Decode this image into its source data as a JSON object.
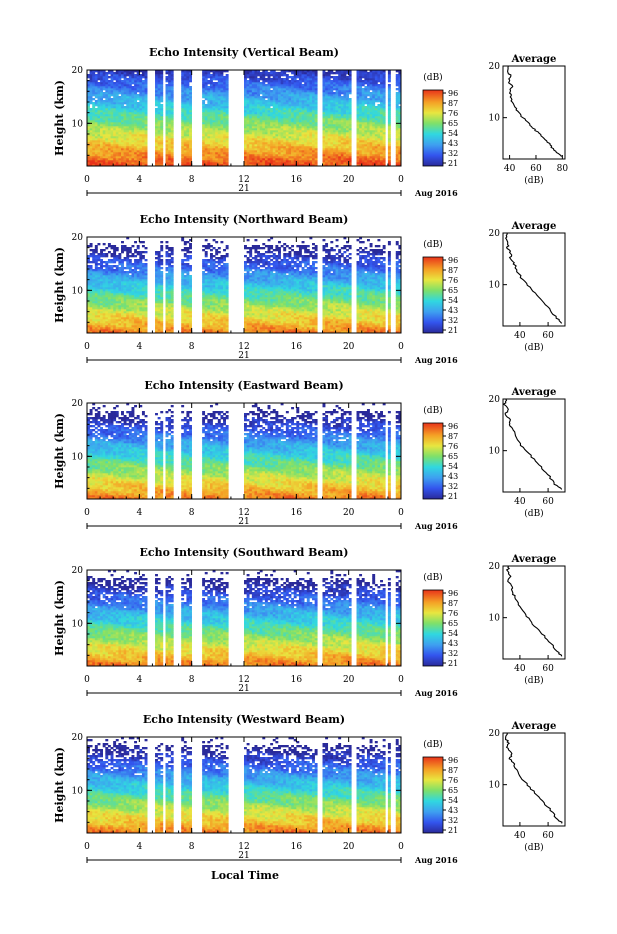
{
  "footer": {
    "xlabel": "Local Time"
  },
  "chart_data": [
    {
      "type": "heatmap",
      "title": "Echo Intensity (Vertical Beam)",
      "ylabel": "Height (km)",
      "yticks": [
        "10",
        "20"
      ],
      "ylim": [
        2,
        20
      ],
      "xticks": [
        "0",
        "4",
        "8",
        "12",
        "16",
        "20",
        "0"
      ],
      "xlim": [
        0,
        24
      ],
      "day_label": "21",
      "date_label": "Aug 2016",
      "colorbar": {
        "unit": "(dB)",
        "ticks": [
          "96",
          "87",
          "76",
          "65",
          "54",
          "43",
          "32",
          "21"
        ]
      },
      "average": {
        "title": "Average",
        "xlabel": "(dB)",
        "xticks": [
          "40",
          "60",
          "80"
        ],
        "xlim": [
          35,
          82
        ],
        "yticks": [
          "10",
          "20"
        ],
        "ylim": [
          2,
          20
        ],
        "profile": [
          [
            80,
            2.5
          ],
          [
            77,
            3
          ],
          [
            73,
            4
          ],
          [
            70,
            5
          ],
          [
            66,
            6
          ],
          [
            62,
            7
          ],
          [
            58,
            8
          ],
          [
            54,
            9
          ],
          [
            50,
            10
          ],
          [
            47,
            11
          ],
          [
            44,
            12
          ],
          [
            42,
            13
          ],
          [
            41,
            14
          ],
          [
            40,
            15
          ],
          [
            42,
            16
          ],
          [
            39,
            17
          ],
          [
            41,
            18
          ],
          [
            38,
            19
          ],
          [
            39,
            20
          ]
        ]
      }
    },
    {
      "type": "heatmap",
      "title": "Echo Intensity (Northward Beam)",
      "ylabel": "Height (km)",
      "yticks": [
        "10",
        "20"
      ],
      "ylim": [
        2,
        20
      ],
      "xticks": [
        "0",
        "4",
        "8",
        "12",
        "16",
        "20",
        "0"
      ],
      "xlim": [
        0,
        24
      ],
      "day_label": "21",
      "date_label": "Aug 2016",
      "colorbar": {
        "unit": "(dB)",
        "ticks": [
          "96",
          "87",
          "76",
          "65",
          "54",
          "43",
          "32",
          "21"
        ]
      },
      "average": {
        "title": "Average",
        "xlabel": "(dB)",
        "xticks": [
          "40",
          "60"
        ],
        "xlim": [
          28,
          72
        ],
        "yticks": [
          "10",
          "20"
        ],
        "ylim": [
          2,
          20
        ],
        "profile": [
          [
            70,
            2.5
          ],
          [
            66,
            3.5
          ],
          [
            62,
            5
          ],
          [
            57,
            6.5
          ],
          [
            52,
            8
          ],
          [
            47,
            9.5
          ],
          [
            42,
            11
          ],
          [
            38,
            12.5
          ],
          [
            36,
            14
          ],
          [
            33,
            15
          ],
          [
            34,
            16
          ],
          [
            31,
            17
          ],
          [
            32,
            18
          ],
          [
            30,
            19
          ],
          [
            31,
            20
          ]
        ]
      }
    },
    {
      "type": "heatmap",
      "title": "Echo Intensity (Eastward Beam)",
      "ylabel": "Height (km)",
      "yticks": [
        "10",
        "20"
      ],
      "ylim": [
        2,
        20
      ],
      "xticks": [
        "0",
        "4",
        "8",
        "12",
        "16",
        "20",
        "0"
      ],
      "xlim": [
        0,
        24
      ],
      "day_label": "21",
      "date_label": "Aug 2016",
      "colorbar": {
        "unit": "(dB)",
        "ticks": [
          "96",
          "87",
          "76",
          "65",
          "54",
          "43",
          "32",
          "21"
        ]
      },
      "average": {
        "title": "Average",
        "xlabel": "(dB)",
        "xticks": [
          "40",
          "60"
        ],
        "xlim": [
          28,
          72
        ],
        "yticks": [
          "10",
          "20"
        ],
        "ylim": [
          2,
          20
        ],
        "profile": [
          [
            70,
            2.5
          ],
          [
            65,
            3.5
          ],
          [
            61,
            5
          ],
          [
            56,
            6.5
          ],
          [
            51,
            8
          ],
          [
            46,
            9.5
          ],
          [
            41,
            11
          ],
          [
            37,
            12.5
          ],
          [
            35,
            14
          ],
          [
            32,
            15
          ],
          [
            33,
            16
          ],
          [
            30,
            17
          ],
          [
            31,
            18
          ],
          [
            29,
            19
          ],
          [
            30,
            20
          ]
        ]
      }
    },
    {
      "type": "heatmap",
      "title": "Echo Intensity (Southward Beam)",
      "ylabel": "Height (km)",
      "yticks": [
        "10",
        "20"
      ],
      "ylim": [
        2,
        20
      ],
      "xticks": [
        "0",
        "4",
        "8",
        "12",
        "16",
        "20",
        "0"
      ],
      "xlim": [
        0,
        24
      ],
      "day_label": "21",
      "date_label": "Aug 2016",
      "colorbar": {
        "unit": "(dB)",
        "ticks": [
          "96",
          "87",
          "76",
          "65",
          "54",
          "43",
          "32",
          "21"
        ]
      },
      "average": {
        "title": "Average",
        "xlabel": "(dB)",
        "xticks": [
          "40",
          "60"
        ],
        "xlim": [
          28,
          72
        ],
        "yticks": [
          "10",
          "20"
        ],
        "ylim": [
          2,
          20
        ],
        "profile": [
          [
            70,
            2.5
          ],
          [
            66,
            3.5
          ],
          [
            62,
            5
          ],
          [
            57,
            6.5
          ],
          [
            52,
            8
          ],
          [
            47,
            9.5
          ],
          [
            43,
            11
          ],
          [
            39,
            12.5
          ],
          [
            37,
            14
          ],
          [
            34,
            15
          ],
          [
            35,
            16
          ],
          [
            32,
            17
          ],
          [
            33,
            18
          ],
          [
            31,
            19
          ],
          [
            32,
            20
          ]
        ]
      }
    },
    {
      "type": "heatmap",
      "title": "Echo Intensity (Westward Beam)",
      "ylabel": "Height (km)",
      "yticks": [
        "10",
        "20"
      ],
      "ylim": [
        2,
        20
      ],
      "xticks": [
        "0",
        "4",
        "8",
        "12",
        "16",
        "20",
        "0"
      ],
      "xlim": [
        0,
        24
      ],
      "day_label": "21",
      "date_label": "Aug 2016",
      "colorbar": {
        "unit": "(dB)",
        "ticks": [
          "96",
          "87",
          "76",
          "65",
          "54",
          "43",
          "32",
          "21"
        ]
      },
      "average": {
        "title": "Average",
        "xlabel": "(dB)",
        "xticks": [
          "40",
          "60"
        ],
        "xlim": [
          28,
          72
        ],
        "yticks": [
          "10",
          "20"
        ],
        "ylim": [
          2,
          20
        ],
        "profile": [
          [
            70,
            2.5
          ],
          [
            66,
            3.5
          ],
          [
            62,
            5
          ],
          [
            57,
            6.5
          ],
          [
            52,
            8
          ],
          [
            47,
            9.5
          ],
          [
            42,
            11
          ],
          [
            38,
            12.5
          ],
          [
            36,
            14
          ],
          [
            33,
            15
          ],
          [
            34,
            16
          ],
          [
            31,
            17
          ],
          [
            32,
            18
          ],
          [
            30,
            19
          ],
          [
            31,
            20
          ]
        ]
      }
    }
  ],
  "data_gaps_hours": [
    [
      4.7,
      5.2
    ],
    [
      5.7,
      6.0
    ],
    [
      6.7,
      7.2
    ],
    [
      8.0,
      8.8
    ],
    [
      10.8,
      11.9
    ],
    [
      17.7,
      18.0
    ],
    [
      20.3,
      20.7
    ],
    [
      22.9,
      23.0
    ],
    [
      23.2,
      23.7
    ]
  ]
}
